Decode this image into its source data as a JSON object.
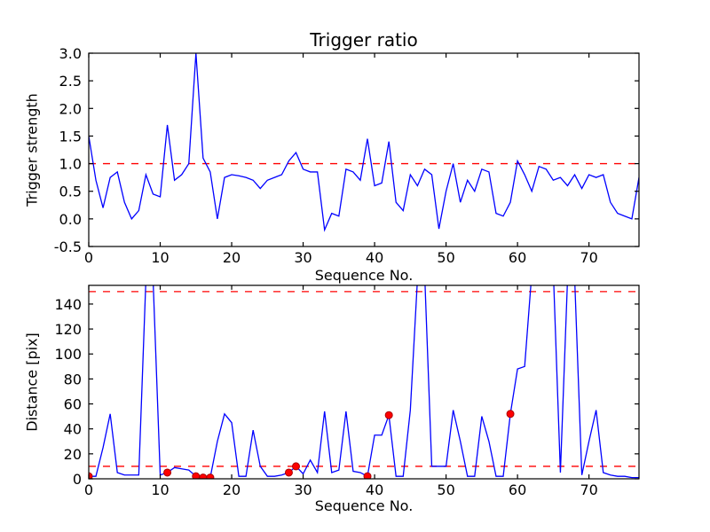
{
  "figure": {
    "background": "#ffffff",
    "axis_color": "#000000"
  },
  "chart_data": [
    {
      "type": "line",
      "title": "Trigger ratio",
      "xlabel": "Sequence No.",
      "ylabel": "Trigger strength",
      "xlim": [
        0,
        77
      ],
      "ylim": [
        -0.5,
        3.0
      ],
      "xticks": [
        0,
        10,
        20,
        30,
        40,
        50,
        60,
        70
      ],
      "xtick_labels": [
        "0",
        "10",
        "20",
        "30",
        "40",
        "50",
        "60",
        "70"
      ],
      "yticks": [
        -0.5,
        0.0,
        0.5,
        1.0,
        1.5,
        2.0,
        2.5,
        3.0
      ],
      "ytick_labels": [
        "-0.5",
        "0.0",
        "0.5",
        "1.0",
        "1.5",
        "2.0",
        "2.5",
        "3.0"
      ],
      "grid": false,
      "hlines": [
        1.0
      ],
      "hline_color": "#ff0000",
      "series": [
        {
          "name": "trigger-strength",
          "color": "#0000ff",
          "values": [
            1.5,
            0.7,
            0.2,
            0.75,
            0.85,
            0.3,
            0.0,
            0.15,
            0.8,
            0.45,
            0.4,
            1.7,
            0.7,
            0.8,
            1.0,
            3.0,
            1.1,
            0.85,
            0.0,
            0.75,
            0.8,
            0.78,
            0.75,
            0.7,
            0.55,
            0.7,
            0.75,
            0.8,
            1.05,
            1.2,
            0.9,
            0.85,
            0.85,
            -0.2,
            0.1,
            0.05,
            0.9,
            0.85,
            0.7,
            1.45,
            0.6,
            0.65,
            1.4,
            0.3,
            0.15,
            0.8,
            0.6,
            0.9,
            0.8,
            -0.18,
            0.5,
            1.0,
            0.3,
            0.7,
            0.5,
            0.9,
            0.85,
            0.1,
            0.05,
            0.3,
            1.05,
            0.8,
            0.5,
            0.95,
            0.9,
            0.7,
            0.75,
            0.6,
            0.8,
            0.55,
            0.8,
            0.75,
            0.8,
            0.3,
            0.1,
            0.05,
            0.0,
            0.75
          ]
        }
      ],
      "markers": []
    },
    {
      "type": "line",
      "title": "",
      "xlabel": "Sequence No.",
      "ylabel": "Distance [pix]",
      "xlim": [
        0,
        77
      ],
      "ylim": [
        0,
        155
      ],
      "xticks": [
        0,
        10,
        20,
        30,
        40,
        50,
        60,
        70
      ],
      "xtick_labels": [
        "0",
        "10",
        "20",
        "30",
        "40",
        "50",
        "60",
        "70"
      ],
      "yticks": [
        0,
        20,
        40,
        60,
        80,
        100,
        120,
        140
      ],
      "ytick_labels": [
        "0",
        "20",
        "40",
        "60",
        "80",
        "100",
        "120",
        "140"
      ],
      "grid": false,
      "hlines": [
        150,
        10
      ],
      "hline_color": "#ff0000",
      "series": [
        {
          "name": "distance",
          "color": "#0000ff",
          "values": [
            2,
            2,
            25,
            52,
            5,
            3,
            3,
            3,
            160,
            160,
            3,
            5,
            9,
            8,
            7,
            2,
            1,
            1,
            30,
            52,
            45,
            2,
            2,
            39,
            10,
            2,
            2,
            3,
            5,
            10,
            4,
            15,
            5,
            54,
            5,
            7,
            54,
            6,
            5,
            2,
            35,
            35,
            51,
            2,
            2,
            55,
            160,
            165,
            10,
            10,
            10,
            55,
            30,
            2,
            2,
            50,
            30,
            2,
            2,
            52,
            88,
            90,
            165,
            170,
            170,
            168,
            5,
            160,
            160,
            3,
            30,
            55,
            5,
            3,
            2,
            2,
            1,
            1
          ]
        }
      ],
      "marker_color": "#ff0000",
      "markers": [
        [
          0,
          2
        ],
        [
          11,
          5
        ],
        [
          15,
          2
        ],
        [
          16,
          1
        ],
        [
          17,
          1
        ],
        [
          28,
          5
        ],
        [
          29,
          10
        ],
        [
          39,
          2
        ],
        [
          42,
          51
        ],
        [
          59,
          52
        ]
      ]
    }
  ]
}
